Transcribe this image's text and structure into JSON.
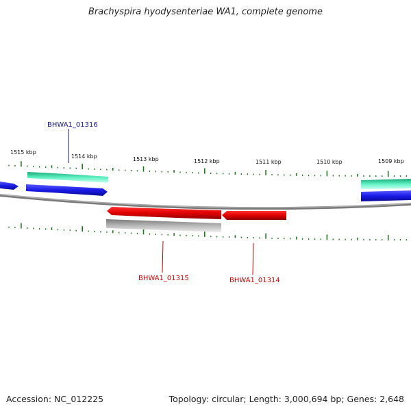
{
  "title": "Brachyspira hyodysenteriae WA1, complete genome",
  "accession": "Accession: NC_012225",
  "summary": "Topology: circular; Length: 3,000,694 bp; Genes: 2,648",
  "ticks": [
    "1515 kbp",
    "1514 kbp",
    "1513 kbp",
    "1512 kbp",
    "1511 kbp",
    "1510 kbp",
    "1509 kbp"
  ],
  "gene_labels": [
    "BHWA1_01316",
    "BHWA1_01315",
    "BHWA1_01314"
  ],
  "colors": {
    "backbone": "#8a8a8a",
    "tick": "#1f7a1f",
    "forward_cds": "#1a1ae6",
    "forward_gene": "#33e0a8",
    "reverse_cds": "#e00000",
    "reverse_gene": "#b0b0b0",
    "label_forward": "#1a1a99",
    "label_reverse": "#cc0000"
  }
}
